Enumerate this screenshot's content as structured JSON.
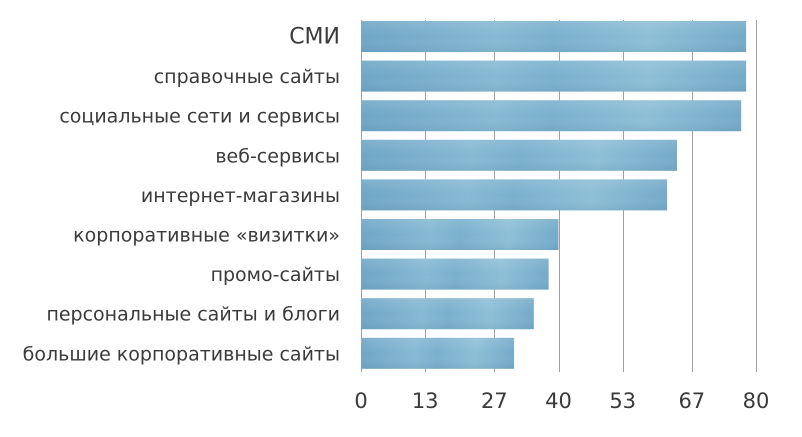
{
  "chart_data": {
    "type": "bar",
    "orientation": "horizontal",
    "categories": [
      "СМИ",
      "справочные сайты",
      "социальные сети и сервисы",
      "веб-сервисы",
      "интернет-магазины",
      "корпоративные «визитки»",
      "промо-сайты",
      "персональные сайты и блоги",
      "большие корпоративные сайты"
    ],
    "values": [
      78,
      78,
      77,
      64,
      62,
      40,
      38,
      35,
      31
    ],
    "xlim": [
      0,
      80
    ],
    "ticks": [
      0,
      13,
      27,
      40,
      53,
      67,
      80
    ],
    "tick_labels": [
      "0",
      "13",
      "27",
      "40",
      "53",
      "67",
      "80"
    ],
    "title": "",
    "xlabel": "",
    "ylabel": "",
    "grid": "vertical",
    "legend": "none",
    "colors": {
      "bar": "#7aaecb",
      "bar_light": "#98c4d8",
      "grid": "#a0a0a0",
      "text": "#3a3a3a"
    }
  }
}
